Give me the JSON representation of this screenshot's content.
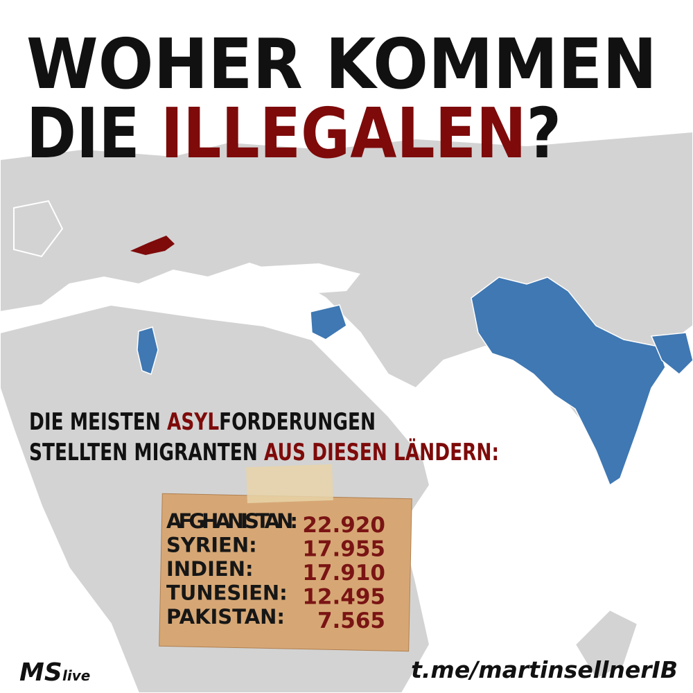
{
  "title": {
    "line1": "WOHER KOMMEN",
    "line2_start": "DIE",
    "line2_highlight": "ILLEGALEN",
    "line2_end": "?"
  },
  "subtitle": {
    "line1_start": "DIE MEISTEN",
    "line1_highlight": "ASYL",
    "line1_end": "FORDERUNGEN",
    "line2_start": "STELLTEN MIGRANTEN",
    "line2_highlight": "AUS DIESEN LÄNDERN:"
  },
  "table": {
    "rows": [
      [
        "AFGHANISTAN:",
        "22.920"
      ],
      [
        "SYRIEN:",
        "17.955"
      ],
      [
        "INDIEN:",
        "17.910"
      ],
      [
        "TUNESIEN:",
        "12.495"
      ],
      [
        "PAKISTAN:",
        "7.565"
      ]
    ]
  },
  "footer": {
    "logo": "MS",
    "logo_suffix": "live",
    "url": "t.me/martinsellnerIB"
  }
}
